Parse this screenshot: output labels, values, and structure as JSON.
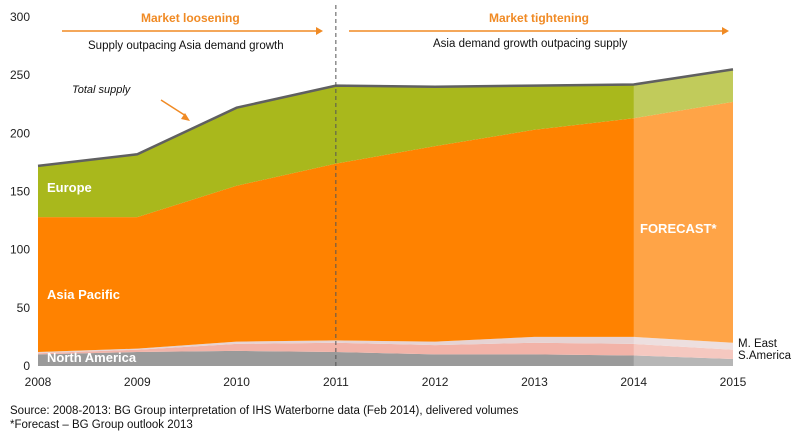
{
  "chart_data": {
    "type": "area",
    "stacked": true,
    "x": [
      2008,
      2009,
      2010,
      2011,
      2012,
      2013,
      2014,
      2015
    ],
    "series": [
      {
        "name": "North America",
        "values": [
          10,
          12,
          13,
          12,
          10,
          10,
          9,
          6
        ],
        "color": "#9a9a9a"
      },
      {
        "name": "S.America",
        "values": [
          1,
          2,
          6,
          8,
          8,
          10,
          10,
          8
        ],
        "color": "#f2b3a8"
      },
      {
        "name": "M. East",
        "values": [
          1,
          1,
          2,
          2,
          3,
          5,
          6,
          6
        ],
        "color": "#e6d3d3"
      },
      {
        "name": "Asia Pacific",
        "values": [
          116,
          113,
          134,
          152,
          168,
          178,
          188,
          207
        ],
        "color": "#ff8200"
      },
      {
        "name": "Europe",
        "values": [
          44,
          54,
          67,
          67,
          51,
          38,
          29,
          28
        ],
        "color": "#a9b81c"
      }
    ],
    "total_supply": [
      172,
      182,
      222,
      241,
      240,
      241,
      242,
      255
    ],
    "forecast_from": 2014,
    "forecast_label": "FORECAST*",
    "ylim": [
      0,
      300
    ],
    "yticks": [
      0,
      50,
      100,
      150,
      200,
      250,
      300
    ],
    "xticks": [
      2008,
      2009,
      2010,
      2011,
      2012,
      2013,
      2014,
      2015
    ],
    "divider_year": 2011,
    "annotations": {
      "left_header": "Market loosening",
      "left_sub": "Supply outpacing Asia demand growth",
      "right_header": "Market tightening",
      "right_sub": "Asia demand growth outpacing supply",
      "total_supply_label": "Total supply"
    },
    "region_labels": {
      "europe": "Europe",
      "asia": "Asia Pacific",
      "north_america": "North America",
      "m_east": "M. East",
      "s_america": "S.America"
    },
    "accent_color": "#f08a24",
    "grid": false
  },
  "footer": {
    "source": "Source:  2008-2013: BG Group interpretation of IHS Waterborne data (Feb 2014), delivered volumes",
    "forecast_note": "*Forecast – BG Group outlook 2013"
  }
}
